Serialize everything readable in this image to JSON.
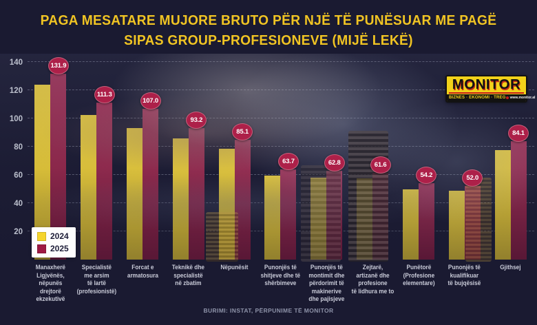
{
  "title": {
    "line1": "PAGA MESATARE MUJORE BRUTO PËR NJË TË PUNËSUAR ME PAGË",
    "line2": "SIPAS GROUP-PROFESIONEVE (MIJË LEKË)"
  },
  "logo": {
    "name": "MONITOR",
    "tagline": "BIZNES · EKONOMI · TREG",
    "site": "www.monitor.al"
  },
  "source": "BURIMI: INSTAT, PËRPUNIME TË MONITOR",
  "colors": {
    "background": "#1a1a31",
    "title": "#f0c423",
    "bar_2024": "#f5d42c",
    "bar_2025": "#9e1a44",
    "badge": "#ad2049",
    "axis_text": "#bcc0cd",
    "category_text": "#c9cbd8",
    "legend_text": "#1d1d38"
  },
  "chart_data": {
    "type": "bar",
    "title": "PAGA MESATARE MUJORE BRUTO PËR NJË TË PUNËSUAR ME PAGË SIPAS GROUP-PROFESIONEVE (MIJË LEKË)",
    "categories": [
      "Manaxherë\nLigjvënës,\nnëpunës\ndrejtorë\nekzekutivë",
      "Specialistë\nme arsim\ntë lartë\n(profesionistë)",
      "Forcat e\narmatosura",
      "Teknikë dhe\nspecialistë\nnë zbatim",
      "Nëpunësit",
      "Punonjës të\nshitjeve dhe të\nshërbimeve",
      "Punonjës të\nmontimit dhe\npërdorimit të\nmakinerive\ndhe pajisjeve",
      "Zejtarë,\nartizanë dhe\nprofesione\ntë lidhura me to",
      "Punëtorë\n(Profesione\nelementare)",
      "Punonjës të\nkualifikuar\ntë bujqësisë",
      "Gjithsej"
    ],
    "series": [
      {
        "name": "2024",
        "color": "#f5d42c",
        "values": [
          124,
          102.5,
          93,
          86,
          78.5,
          59.5,
          58,
          57.5,
          50,
          49,
          77.5
        ],
        "data_labels": false,
        "note": "bars unlabeled in chart; values estimated from bar heights"
      },
      {
        "name": "2025",
        "color": "#9e1a44",
        "values": [
          131.9,
          111.3,
          107.0,
          93.2,
          85.1,
          63.7,
          62.8,
          61.6,
          54.2,
          52.0,
          84.1
        ],
        "data_labels": true
      }
    ],
    "ylabel": "",
    "xlabel": "",
    "yticks": [
      20,
      40,
      60,
      80,
      100,
      120,
      140
    ],
    "ylim": [
      0,
      142.5
    ],
    "grid": "dashed-horizontal",
    "legend_position": "bottom-left",
    "source": "BURIMI: INSTAT, PËRPUNIME TË MONITOR"
  }
}
